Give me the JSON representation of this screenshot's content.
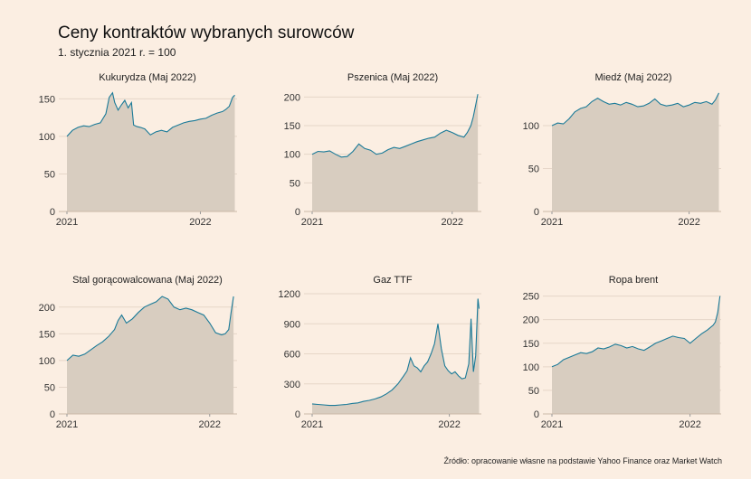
{
  "header": {
    "title": "Ceny kontraktów wybranych surowców",
    "subtitle": "1. stycznia 2021 r. = 100"
  },
  "footer": {
    "source": "Źródło: opracowanie własne na podstawie Yahoo Finance oraz Market Watch"
  },
  "colors": {
    "background": "#fbeee2",
    "line": "#1a7a98",
    "area": "#d8cdc0"
  },
  "chart_data": [
    {
      "type": "area",
      "title": "Kukurydza (Maj 2022)",
      "x_ticks": [
        "2021",
        "2022"
      ],
      "x_range": [
        0,
        15.3
      ],
      "x_tick_positions": [
        0,
        12
      ],
      "ylim": [
        0,
        160
      ],
      "yticks": [
        0,
        50,
        100,
        150
      ],
      "x": [
        0,
        0.5,
        1,
        1.5,
        2,
        2.5,
        3,
        3.5,
        3.8,
        4.1,
        4.3,
        4.6,
        4.9,
        5.2,
        5.5,
        5.8,
        6.0,
        6.3,
        6.6,
        7,
        7.5,
        8,
        8.5,
        9,
        9.5,
        10,
        10.5,
        11,
        11.5,
        12,
        12.5,
        13,
        13.5,
        14,
        14.3,
        14.6,
        14.9,
        15.1
      ],
      "values": [
        100,
        108,
        112,
        114,
        113,
        116,
        118,
        130,
        152,
        158,
        145,
        135,
        142,
        148,
        138,
        145,
        115,
        113,
        112,
        110,
        102,
        106,
        108,
        106,
        112,
        115,
        118,
        120,
        121,
        123,
        124,
        128,
        131,
        133,
        136,
        140,
        152,
        155
      ]
    },
    {
      "type": "area",
      "title": "Pszenica (Maj 2022)",
      "x_ticks": [
        "2021",
        "2022"
      ],
      "x_range": [
        0,
        14.5
      ],
      "x_tick_positions": [
        0,
        12
      ],
      "ylim": [
        0,
        210
      ],
      "yticks": [
        0,
        50,
        100,
        150,
        200
      ],
      "x": [
        0,
        0.5,
        1,
        1.5,
        2,
        2.5,
        3,
        3.5,
        4,
        4.5,
        5,
        5.5,
        6,
        6.5,
        7,
        7.5,
        8,
        8.5,
        9,
        9.5,
        10,
        10.5,
        11,
        11.5,
        12,
        12.5,
        13,
        13.3,
        13.6,
        13.8,
        14.0,
        14.2
      ],
      "values": [
        100,
        105,
        104,
        106,
        100,
        95,
        96,
        105,
        118,
        110,
        107,
        100,
        102,
        108,
        112,
        110,
        114,
        118,
        122,
        125,
        128,
        130,
        137,
        142,
        138,
        133,
        130,
        138,
        150,
        165,
        185,
        205
      ]
    },
    {
      "type": "area",
      "title": "Miedź (Maj 2022)",
      "x_ticks": [
        "2021",
        "2022"
      ],
      "x_range": [
        0,
        14.8
      ],
      "x_tick_positions": [
        0,
        12
      ],
      "ylim": [
        0,
        140
      ],
      "yticks": [
        0,
        50,
        100
      ],
      "x": [
        0,
        0.5,
        1,
        1.5,
        2,
        2.5,
        3,
        3.5,
        4,
        4.5,
        5,
        5.5,
        6,
        6.5,
        7,
        7.5,
        8,
        8.5,
        9,
        9.5,
        10,
        10.5,
        11,
        11.5,
        12,
        12.5,
        13,
        13.5,
        14,
        14.3,
        14.6
      ],
      "values": [
        100,
        103,
        102,
        108,
        116,
        120,
        122,
        128,
        132,
        128,
        125,
        126,
        124,
        127,
        125,
        122,
        123,
        126,
        131,
        125,
        123,
        124,
        126,
        122,
        124,
        127,
        126,
        128,
        125,
        130,
        138
      ]
    },
    {
      "type": "area",
      "title": "Stal gorącowalcowana (Maj 2022)",
      "x_ticks": [
        "2021",
        "2022"
      ],
      "x_range": [
        0,
        14.3
      ],
      "x_tick_positions": [
        0,
        12
      ],
      "ylim": [
        0,
        225
      ],
      "yticks": [
        0,
        50,
        100,
        150,
        200
      ],
      "x": [
        0,
        0.5,
        1,
        1.5,
        2,
        2.5,
        3,
        3.5,
        4,
        4.3,
        4.6,
        5,
        5.5,
        6,
        6.5,
        7,
        7.5,
        8,
        8.5,
        9,
        9.5,
        10,
        10.5,
        11,
        11.5,
        12,
        12.5,
        13,
        13.3,
        13.6,
        13.8,
        14.0
      ],
      "values": [
        100,
        110,
        108,
        112,
        120,
        128,
        135,
        145,
        158,
        175,
        185,
        170,
        178,
        190,
        200,
        205,
        210,
        220,
        215,
        200,
        195,
        198,
        195,
        190,
        185,
        170,
        152,
        148,
        150,
        158,
        190,
        220
      ]
    },
    {
      "type": "area",
      "title": "Gaz TTF",
      "x_ticks": [
        "2021",
        "2022"
      ],
      "x_range": [
        0,
        14.8
      ],
      "x_tick_positions": [
        0,
        12
      ],
      "ylim": [
        0,
        1200
      ],
      "yticks": [
        0,
        300,
        600,
        900,
        1200
      ],
      "x": [
        0,
        0.5,
        1,
        1.5,
        2,
        2.5,
        3,
        3.5,
        4,
        4.5,
        5,
        5.5,
        6,
        6.5,
        7,
        7.5,
        8,
        8.3,
        8.6,
        8.9,
        9.2,
        9.5,
        9.8,
        10.1,
        10.4,
        10.7,
        11.0,
        11.3,
        11.6,
        11.9,
        12.2,
        12.5,
        12.8,
        13.1,
        13.4,
        13.7,
        13.9,
        14.1,
        14.3,
        14.5,
        14.6
      ],
      "values": [
        100,
        95,
        90,
        85,
        85,
        90,
        95,
        105,
        110,
        125,
        135,
        150,
        170,
        200,
        240,
        300,
        380,
        430,
        560,
        480,
        460,
        420,
        480,
        520,
        600,
        700,
        900,
        650,
        480,
        430,
        400,
        420,
        380,
        350,
        360,
        500,
        950,
        420,
        580,
        1150,
        1050
      ]
    },
    {
      "type": "area",
      "title": "Ropa brent",
      "x_ticks": [
        "2021",
        "2022"
      ],
      "x_range": [
        0,
        14.7
      ],
      "x_tick_positions": [
        0,
        12
      ],
      "ylim": [
        0,
        255
      ],
      "yticks": [
        0,
        50,
        100,
        150,
        200,
        250
      ],
      "x": [
        0,
        0.5,
        1,
        1.5,
        2,
        2.5,
        3,
        3.5,
        4,
        4.5,
        5,
        5.5,
        6,
        6.5,
        7,
        7.5,
        8,
        8.5,
        9,
        9.5,
        10,
        10.5,
        11,
        11.5,
        12,
        12.5,
        13,
        13.5,
        14,
        14.2,
        14.4,
        14.6
      ],
      "values": [
        100,
        105,
        115,
        120,
        125,
        130,
        128,
        132,
        140,
        138,
        142,
        148,
        145,
        140,
        143,
        138,
        135,
        142,
        150,
        155,
        160,
        165,
        162,
        160,
        150,
        160,
        170,
        178,
        188,
        195,
        215,
        250
      ]
    }
  ]
}
